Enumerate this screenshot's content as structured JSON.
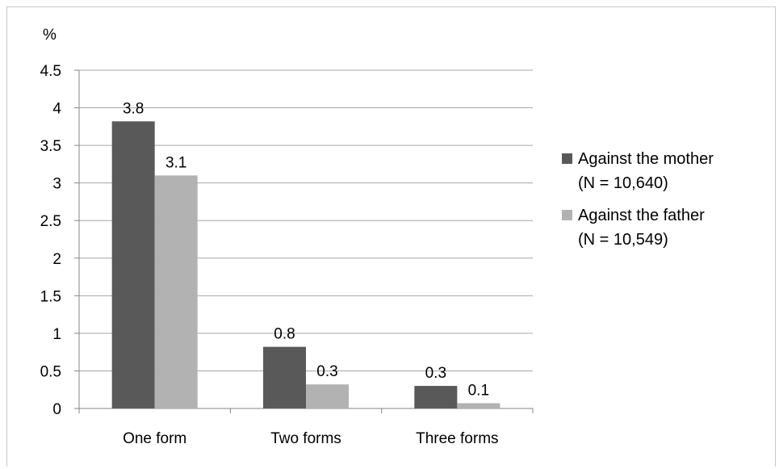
{
  "chart_data": {
    "type": "bar",
    "ylabel": "%",
    "ylim": [
      0,
      4.5
    ],
    "ytick_step": 0.5,
    "ytick_labels": [
      "0",
      "0.5",
      "1",
      "1.5",
      "2",
      "2.5",
      "3",
      "3.5",
      "4",
      "4.5"
    ],
    "categories": [
      "One form",
      "Two forms",
      "Three forms"
    ],
    "series": [
      {
        "name": "Against the mother\n(N = 10,640)",
        "values": [
          3.82,
          0.82,
          0.3
        ],
        "labels": [
          "3.8",
          "0.8",
          "0.3"
        ],
        "color": "#595959"
      },
      {
        "name": "Against the father\n(N = 10,549)",
        "values": [
          3.1,
          0.32,
          0.07
        ],
        "labels": [
          "3.1",
          "0.3",
          "0.1"
        ],
        "color": "#b2b2b2"
      }
    ],
    "grid": true,
    "legend_position": "right"
  }
}
